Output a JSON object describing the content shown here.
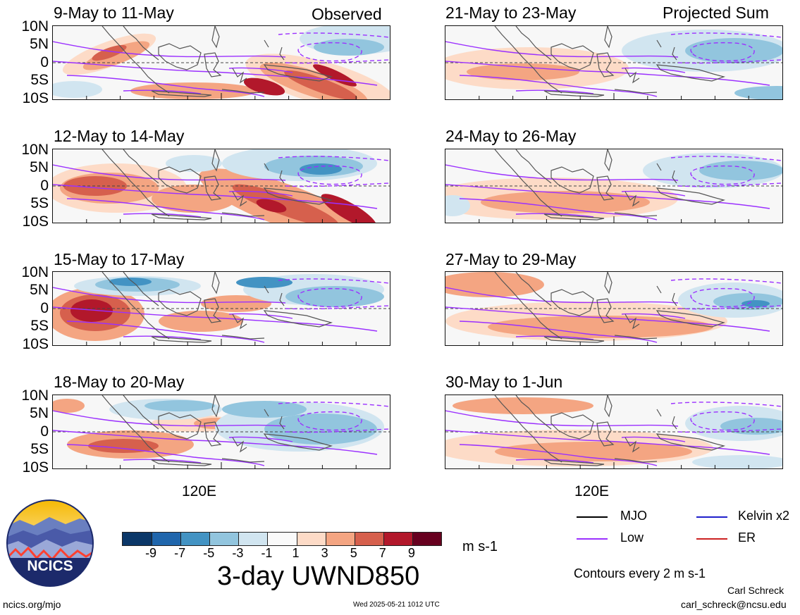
{
  "headers": {
    "left": "Observed",
    "right": "Projected Sum"
  },
  "panels_left": [
    {
      "title": "9-May to 11-May"
    },
    {
      "title": "12-May to 14-May"
    },
    {
      "title": "15-May to 17-May"
    },
    {
      "title": "18-May to 20-May"
    }
  ],
  "panels_right": [
    {
      "title": "21-May to 23-May"
    },
    {
      "title": "24-May to 26-May"
    },
    {
      "title": "27-May to 29-May"
    },
    {
      "title": "30-May to 1-Jun"
    }
  ],
  "lat_labels": [
    "10N",
    "5N",
    "0",
    "5S",
    "10S"
  ],
  "lon_label": "120E",
  "colorbar": {
    "labels": [
      "-9",
      "-7",
      "-5",
      "-3",
      "-1",
      "1",
      "3",
      "5",
      "7",
      "9"
    ],
    "colors": [
      "#0b3768",
      "#2066ac",
      "#4393c3",
      "#92c5de",
      "#d1e5f0",
      "#fafafa",
      "#fddbc7",
      "#f4a582",
      "#d6604d",
      "#b2182b",
      "#67001f"
    ],
    "units": "m s-1",
    "title": "3-day UWND850"
  },
  "legend": {
    "mjo": "MJO",
    "kelvin": "Kelvin x2",
    "low": "Low",
    "er": "ER",
    "colors": {
      "mjo": "#000000",
      "kelvin": "#1f1fcc",
      "low": "#9b30ff",
      "er": "#cc2222"
    },
    "contours_note": "Contours every 2 m s-1"
  },
  "logo": {
    "text": "NCICS"
  },
  "footer": {
    "site": "ncics.org/mjo",
    "timestamp": "Wed 2025-05-21 1012 UTC",
    "author": "Carl Schreck",
    "email": "carl_schreck@ncsu.edu"
  }
}
